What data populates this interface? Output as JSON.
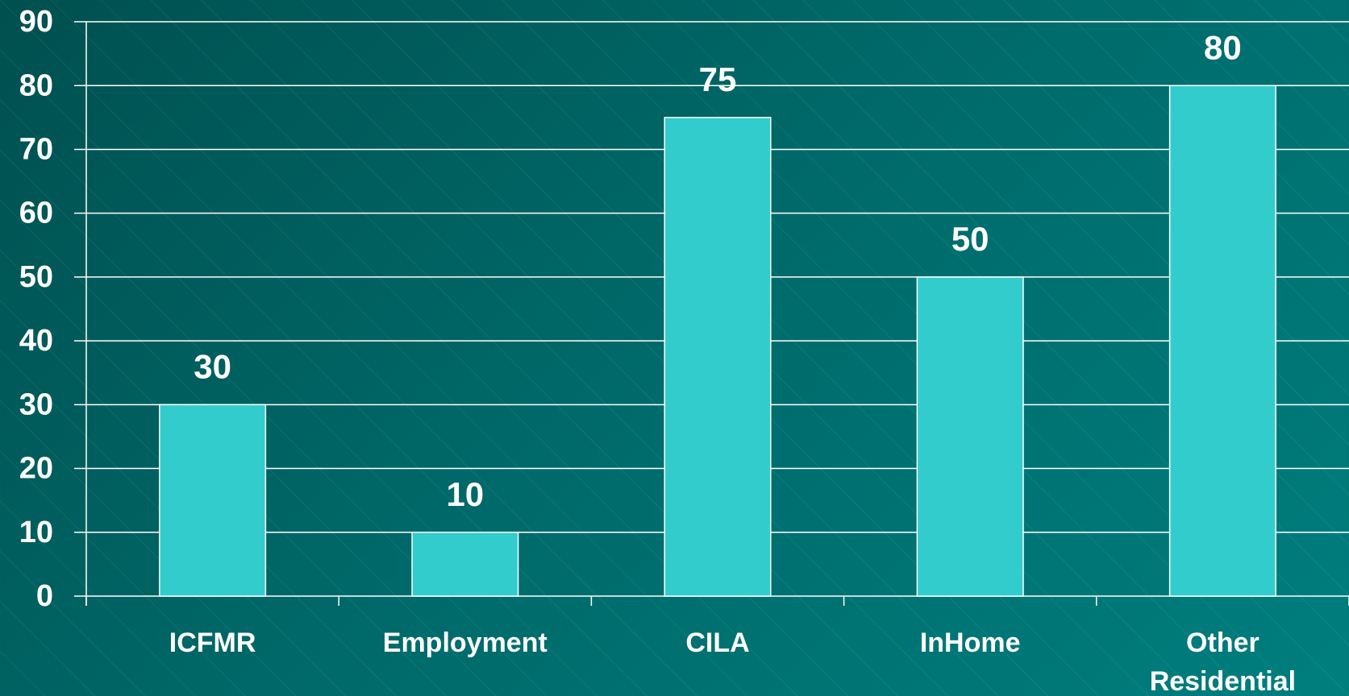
{
  "chart_data": {
    "type": "bar",
    "categories": [
      "ICFMR",
      "Employment",
      "CILA",
      "InHome",
      "Other Residential"
    ],
    "values": [
      30,
      10,
      75,
      50,
      80
    ],
    "color": "#33cccc",
    "ylim": [
      0,
      90
    ],
    "yticks": [
      0,
      10,
      20,
      30,
      40,
      50,
      60,
      70,
      80,
      90
    ],
    "grid": true
  }
}
